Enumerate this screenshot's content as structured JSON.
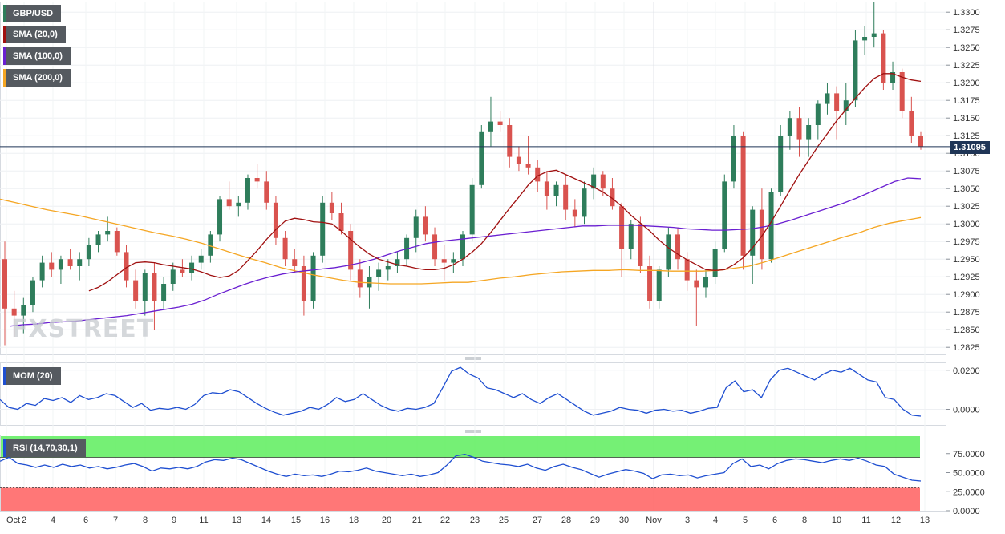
{
  "chart_data": {
    "type": "candlestick",
    "symbol": "GBP/USD",
    "current_price": "1.31095",
    "watermark": "FXSTREET",
    "indicators": {
      "sma20": "SMA (20,0)",
      "sma100": "SMA (100,0)",
      "sma200": "SMA (200,0)",
      "mom": "MOM (20)",
      "rsi": "RSI (14,70,30,1)"
    },
    "price_axis": {
      "ylim": [
        1.2815,
        1.3315
      ],
      "ticks": [
        "1.3300",
        "1.3275",
        "1.3250",
        "1.3225",
        "1.3200",
        "1.3175",
        "1.3150",
        "1.3125",
        "1.3100",
        "1.3075",
        "1.3050",
        "1.3025",
        "1.3000",
        "1.2975",
        "1.2950",
        "1.2925",
        "1.2900",
        "1.2875",
        "1.2850",
        "1.2825"
      ]
    },
    "mom_axis": {
      "ylim": [
        -0.008,
        0.024
      ],
      "ticks": [
        "0.0200",
        "0.0000"
      ]
    },
    "rsi_axis": {
      "ylim": [
        0,
        100
      ],
      "ticks": [
        "75.0000",
        "50.0000",
        "25.0000",
        "0.0000"
      ],
      "overbought": 70,
      "oversold": 30
    },
    "x_labels": [
      "Oct",
      "2",
      "4",
      "6",
      "7",
      "8",
      "9",
      "11",
      "13",
      "14",
      "15",
      "16",
      "18",
      "20",
      "21",
      "22",
      "23",
      "25",
      "27",
      "28",
      "29",
      "30",
      "Nov",
      "3",
      "4",
      "5",
      "6",
      "8",
      "10",
      "11",
      "12",
      "13"
    ],
    "candles": [
      [
        1.295,
        1.2975,
        1.2828,
        1.288
      ],
      [
        1.288,
        1.2905,
        1.284,
        1.287
      ],
      [
        1.287,
        1.2895,
        1.2845,
        1.2885
      ],
      [
        1.2885,
        1.2925,
        1.2875,
        1.292
      ],
      [
        1.292,
        1.2955,
        1.291,
        1.2945
      ],
      [
        1.2945,
        1.296,
        1.2925,
        1.2935
      ],
      [
        1.2935,
        1.2955,
        1.2915,
        1.295
      ],
      [
        1.295,
        1.2965,
        1.2935,
        1.294
      ],
      [
        1.294,
        1.296,
        1.292,
        1.295
      ],
      [
        1.295,
        1.298,
        1.294,
        1.297
      ],
      [
        1.297,
        1.299,
        1.296,
        1.2985
      ],
      [
        1.2985,
        1.301,
        1.2975,
        1.299
      ],
      [
        1.299,
        1.2995,
        1.2955,
        1.296
      ],
      [
        1.296,
        1.297,
        1.291,
        1.292
      ],
      [
        1.292,
        1.2935,
        1.288,
        1.289
      ],
      [
        1.289,
        1.2935,
        1.287,
        1.293
      ],
      [
        1.293,
        1.2945,
        1.285,
        1.289
      ],
      [
        1.289,
        1.2925,
        1.288,
        1.2915
      ],
      [
        1.2915,
        1.2945,
        1.2905,
        1.2935
      ],
      [
        1.2935,
        1.295,
        1.2925,
        1.293
      ],
      [
        1.293,
        1.2955,
        1.292,
        1.2945
      ],
      [
        1.2945,
        1.2965,
        1.2935,
        1.2955
      ],
      [
        1.2955,
        1.299,
        1.2945,
        1.2985
      ],
      [
        1.2985,
        1.304,
        1.2975,
        1.3035
      ],
      [
        1.3035,
        1.306,
        1.302,
        1.3025
      ],
      [
        1.3025,
        1.304,
        1.301,
        1.303
      ],
      [
        1.303,
        1.307,
        1.302,
        1.3065
      ],
      [
        1.3065,
        1.3085,
        1.305,
        1.306
      ],
      [
        1.306,
        1.3075,
        1.302,
        1.303
      ],
      [
        1.303,
        1.304,
        1.297,
        1.298
      ],
      [
        1.298,
        1.299,
        1.294,
        1.295
      ],
      [
        1.295,
        1.2965,
        1.293,
        1.294
      ],
      [
        1.294,
        1.2955,
        1.287,
        1.289
      ],
      [
        1.289,
        1.296,
        1.288,
        1.2955
      ],
      [
        1.2955,
        1.304,
        1.2945,
        1.303
      ],
      [
        1.303,
        1.3045,
        1.3005,
        1.3015
      ],
      [
        1.3015,
        1.303,
        1.2985,
        1.299
      ],
      [
        1.299,
        1.3,
        1.292,
        1.2935
      ],
      [
        1.2935,
        1.295,
        1.2895,
        1.291
      ],
      [
        1.291,
        1.294,
        1.288,
        1.2925
      ],
      [
        1.2925,
        1.2945,
        1.2905,
        1.2935
      ],
      [
        1.2935,
        1.295,
        1.292,
        1.294
      ],
      [
        1.294,
        1.296,
        1.293,
        1.295
      ],
      [
        1.295,
        1.2985,
        1.294,
        1.298
      ],
      [
        1.298,
        1.302,
        1.296,
        1.301
      ],
      [
        1.301,
        1.3025,
        1.2975,
        1.2985
      ],
      [
        1.2985,
        1.2995,
        1.294,
        1.295
      ],
      [
        1.295,
        1.297,
        1.292,
        1.2945
      ],
      [
        1.2945,
        1.296,
        1.293,
        1.295
      ],
      [
        1.295,
        1.299,
        1.294,
        1.2985
      ],
      [
        1.2985,
        1.3065,
        1.2975,
        1.3055
      ],
      [
        1.3055,
        1.314,
        1.305,
        1.313
      ],
      [
        1.313,
        1.318,
        1.311,
        1.3145
      ],
      [
        1.3145,
        1.316,
        1.313,
        1.314
      ],
      [
        1.314,
        1.315,
        1.308,
        1.3095
      ],
      [
        1.3095,
        1.311,
        1.3075,
        1.3085
      ],
      [
        1.3085,
        1.3125,
        1.307,
        1.308
      ],
      [
        1.308,
        1.309,
        1.3045,
        1.306
      ],
      [
        1.306,
        1.3075,
        1.302,
        1.304
      ],
      [
        1.304,
        1.306,
        1.3025,
        1.3055
      ],
      [
        1.3055,
        1.307,
        1.3005,
        1.302
      ],
      [
        1.302,
        1.3035,
        1.2995,
        1.301
      ],
      [
        1.301,
        1.306,
        1.3,
        1.305
      ],
      [
        1.305,
        1.308,
        1.3035,
        1.307
      ],
      [
        1.307,
        1.3075,
        1.304,
        1.305
      ],
      [
        1.305,
        1.3065,
        1.302,
        1.3025
      ],
      [
        1.3025,
        1.303,
        1.2925,
        1.2965
      ],
      [
        1.2965,
        1.3005,
        1.295,
        1.3
      ],
      [
        1.3,
        1.301,
        1.293,
        1.294
      ],
      [
        1.294,
        1.2955,
        1.288,
        1.289
      ],
      [
        1.289,
        1.294,
        1.288,
        1.2935
      ],
      [
        1.2935,
        1.2995,
        1.2925,
        1.2985
      ],
      [
        1.2985,
        1.2995,
        1.2935,
        1.295
      ],
      [
        1.295,
        1.296,
        1.2905,
        1.292
      ],
      [
        1.292,
        1.2935,
        1.2855,
        1.291
      ],
      [
        1.291,
        1.2935,
        1.2895,
        1.2925
      ],
      [
        1.2925,
        1.2975,
        1.2915,
        1.2965
      ],
      [
        1.2965,
        1.307,
        1.296,
        1.306
      ],
      [
        1.306,
        1.314,
        1.305,
        1.3125
      ],
      [
        1.3125,
        1.313,
        1.2935,
        1.2955
      ],
      [
        1.2955,
        1.3025,
        1.2915,
        1.302
      ],
      [
        1.302,
        1.305,
        1.2935,
        1.295
      ],
      [
        1.295,
        1.305,
        1.2945,
        1.3045
      ],
      [
        1.3045,
        1.314,
        1.304,
        1.3125
      ],
      [
        1.3125,
        1.316,
        1.3105,
        1.315
      ],
      [
        1.315,
        1.3165,
        1.3095,
        1.312
      ],
      [
        1.312,
        1.315,
        1.3095,
        1.314
      ],
      [
        1.314,
        1.3175,
        1.312,
        1.317
      ],
      [
        1.317,
        1.32,
        1.3155,
        1.3185
      ],
      [
        1.3185,
        1.3195,
        1.312,
        1.316
      ],
      [
        1.316,
        1.32,
        1.314,
        1.3175
      ],
      [
        1.3175,
        1.3275,
        1.3165,
        1.326
      ],
      [
        1.326,
        1.328,
        1.324,
        1.3265
      ],
      [
        1.3265,
        1.3315,
        1.325,
        1.327
      ],
      [
        1.327,
        1.3275,
        1.319,
        1.32
      ],
      [
        1.32,
        1.323,
        1.319,
        1.3215
      ],
      [
        1.3215,
        1.322,
        1.315,
        1.316
      ],
      [
        1.316,
        1.318,
        1.3115,
        1.3125
      ],
      [
        1.3125,
        1.313,
        1.3105,
        1.31095
      ]
    ],
    "sma20": [
      1.2905,
      1.291,
      1.2918,
      1.2928,
      1.2938,
      1.2945,
      1.2946,
      1.2945,
      1.2942,
      1.294,
      1.2938,
      1.2936,
      1.2932,
      1.2927,
      1.2924,
      1.2926,
      1.2934,
      1.2948,
      1.2962,
      1.2978,
      1.2992,
      1.3004,
      1.3008,
      1.3006,
      1.3003,
      1.3002,
      1.3,
      1.299,
      1.2978,
      1.2967,
      1.2957,
      1.295,
      1.2946,
      1.2942,
      1.294,
      1.2937,
      1.2935,
      1.2935,
      1.2937,
      1.2942,
      1.295,
      1.296,
      1.2972,
      1.2988,
      1.3005,
      1.3022,
      1.3038,
      1.3055,
      1.3068,
      1.3074,
      1.3076,
      1.307,
      1.3064,
      1.3058,
      1.3052,
      1.3045,
      1.3036,
      1.3025,
      1.3012,
      1.3001,
      1.299,
      1.2977,
      1.2966,
      1.2957,
      1.2949,
      1.2942,
      1.2935,
      1.2934,
      1.2935,
      1.2942,
      1.2952,
      1.2966,
      1.2983,
      1.3003,
      1.3025,
      1.3048,
      1.307,
      1.309,
      1.311,
      1.3128,
      1.3146,
      1.3162,
      1.3178,
      1.3193,
      1.3206,
      1.3213,
      1.3213,
      1.3208,
      1.3204,
      1.3202
    ],
    "sma20_start": 9,
    "sma100": [
      1.2855,
      1.2857,
      1.2858,
      1.286,
      1.2861,
      1.2862,
      1.2864,
      1.2866,
      1.2868,
      1.287,
      1.2873,
      1.2876,
      1.2879,
      1.2882,
      1.2886,
      1.2892,
      1.29,
      1.2907,
      1.2914,
      1.292,
      1.2925,
      1.2929,
      1.2932,
      1.2934,
      1.2936,
      1.2938,
      1.2941,
      1.2945,
      1.295,
      1.2956,
      1.2962,
      1.2967,
      1.2972,
      1.2975,
      1.2977,
      1.2979,
      1.2981,
      1.2983,
      1.2985,
      1.2987,
      1.2989,
      1.2991,
      1.2993,
      1.2995,
      1.2997,
      1.2997,
      1.2998,
      1.2998,
      1.2998,
      1.2997,
      1.2996,
      1.2995,
      1.2993,
      1.2992,
      1.2991,
      1.2991,
      1.2992,
      1.2993,
      1.2996,
      1.3,
      1.3005,
      1.3011,
      1.3017,
      1.3023,
      1.3029,
      1.3036,
      1.3044,
      1.3052,
      1.306,
      1.3065,
      1.3064
    ],
    "sma100_start": 0,
    "sma100_step": 1.5,
    "sma200": [
      1.3035,
      1.303,
      1.3025,
      1.302,
      1.3016,
      1.3012,
      1.3007,
      1.3002,
      1.2997,
      1.2992,
      1.2987,
      1.2983,
      1.2978,
      1.2972,
      1.2965,
      1.2958,
      1.2951,
      1.2945,
      1.2938,
      1.2933,
      1.2928,
      1.2924,
      1.292,
      1.2917,
      1.2916,
      1.2915,
      1.2915,
      1.2915,
      1.2916,
      1.2917,
      1.2917,
      1.292,
      1.2923,
      1.2925,
      1.2928,
      1.293,
      1.2932,
      1.2933,
      1.2934,
      1.2934,
      1.2935,
      1.2934,
      1.2934,
      1.2933,
      1.2933,
      1.2933,
      1.2934,
      1.2937,
      1.294,
      1.2946,
      1.2953,
      1.296,
      1.2967,
      1.2974,
      1.2981,
      1.2987,
      1.2995,
      1.3001,
      1.3005,
      1.3009
    ],
    "sma200_step": 1.67,
    "mom": [
      0.005,
      0.001,
      0.0,
      0.003,
      0.002,
      0.0055,
      0.0045,
      0.006,
      0.0035,
      0.007,
      0.005,
      0.006,
      0.008,
      0.007,
      0.004,
      0.001,
      0.003,
      -0.0005,
      0.0005,
      0.0,
      0.001,
      0.0,
      0.0025,
      0.007,
      0.0085,
      0.008,
      0.01,
      0.009,
      0.006,
      0.003,
      0.0005,
      -0.0015,
      -0.003,
      -0.002,
      -0.001,
      0.001,
      0.0,
      0.0025,
      0.006,
      0.004,
      0.005,
      0.008,
      0.005,
      0.002,
      0.0,
      -0.001,
      0.0005,
      0.0,
      0.001,
      0.003,
      0.011,
      0.0195,
      0.0215,
      0.018,
      0.016,
      0.011,
      0.01,
      0.008,
      0.006,
      0.008,
      0.005,
      0.003,
      0.006,
      0.008,
      0.005,
      0.002,
      -0.001,
      -0.003,
      -0.002,
      -0.001,
      0.001,
      0.0,
      -0.0005,
      -0.002,
      -0.0005,
      0.0,
      -0.001,
      -0.0005,
      -0.002,
      -0.001,
      0.0005,
      0.001,
      0.011,
      0.0145,
      0.009,
      0.01,
      0.006,
      0.015,
      0.02,
      0.021,
      0.019,
      0.017,
      0.015,
      0.018,
      0.02,
      0.019,
      0.021,
      0.018,
      0.015,
      0.014,
      0.006,
      0.005,
      0.0,
      -0.003,
      -0.0035
    ],
    "rsi": [
      65,
      70,
      62,
      60,
      57,
      60,
      57,
      61,
      58,
      60,
      56,
      58,
      55,
      57,
      60,
      62,
      58,
      52,
      56,
      55,
      57,
      55,
      58,
      64,
      67,
      66,
      69,
      67,
      62,
      57,
      52,
      48,
      45,
      48,
      46,
      47,
      45,
      48,
      52,
      51,
      53,
      56,
      52,
      50,
      48,
      46,
      48,
      45,
      47,
      50,
      60,
      72,
      74,
      70,
      65,
      63,
      61,
      60,
      58,
      61,
      56,
      53,
      58,
      61,
      57,
      54,
      49,
      44,
      48,
      51,
      54,
      52,
      49,
      42,
      47,
      48,
      46,
      47,
      43,
      46,
      48,
      50,
      62,
      68,
      58,
      60,
      55,
      62,
      66,
      68,
      67,
      65,
      63,
      66,
      68,
      66,
      69,
      65,
      60,
      58,
      48,
      44,
      40,
      39
    ],
    "rsi_x_start": 0
  }
}
